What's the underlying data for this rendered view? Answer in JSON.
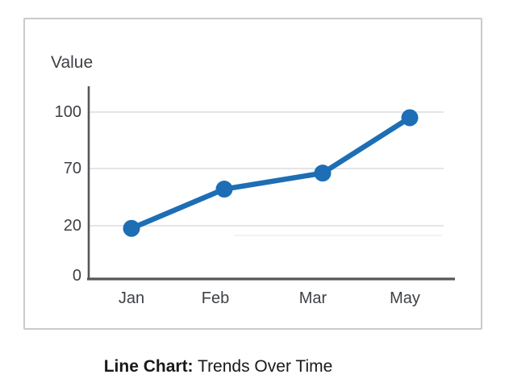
{
  "chart_data": {
    "type": "line",
    "categories": [
      "Jan",
      "Feb",
      "Mar",
      "May"
    ],
    "values": [
      19,
      52,
      66,
      97
    ],
    "ylabel": "Value",
    "xlabel": "",
    "y_ticks": [
      100,
      70,
      20,
      0
    ],
    "y_tick_labels": [
      "100",
      "70",
      "20",
      "0"
    ],
    "ylim": [
      0,
      100
    ],
    "grid": "horizontal-only",
    "legend": "none",
    "marker": "filled-circle",
    "line_color": "#1d6eb5"
  },
  "caption": {
    "bold": "Line Chart:",
    "regular": " Trends Over Time"
  },
  "colors": {
    "line": "#1d6eb5",
    "grid": "#e3e5e9",
    "grid_faint": "#f1f2f5",
    "axis": "#54565a",
    "tick_text": "#3e4146",
    "caption_text": "#19191b",
    "frame_border": "#c9cacd",
    "background": "#ffffff"
  }
}
